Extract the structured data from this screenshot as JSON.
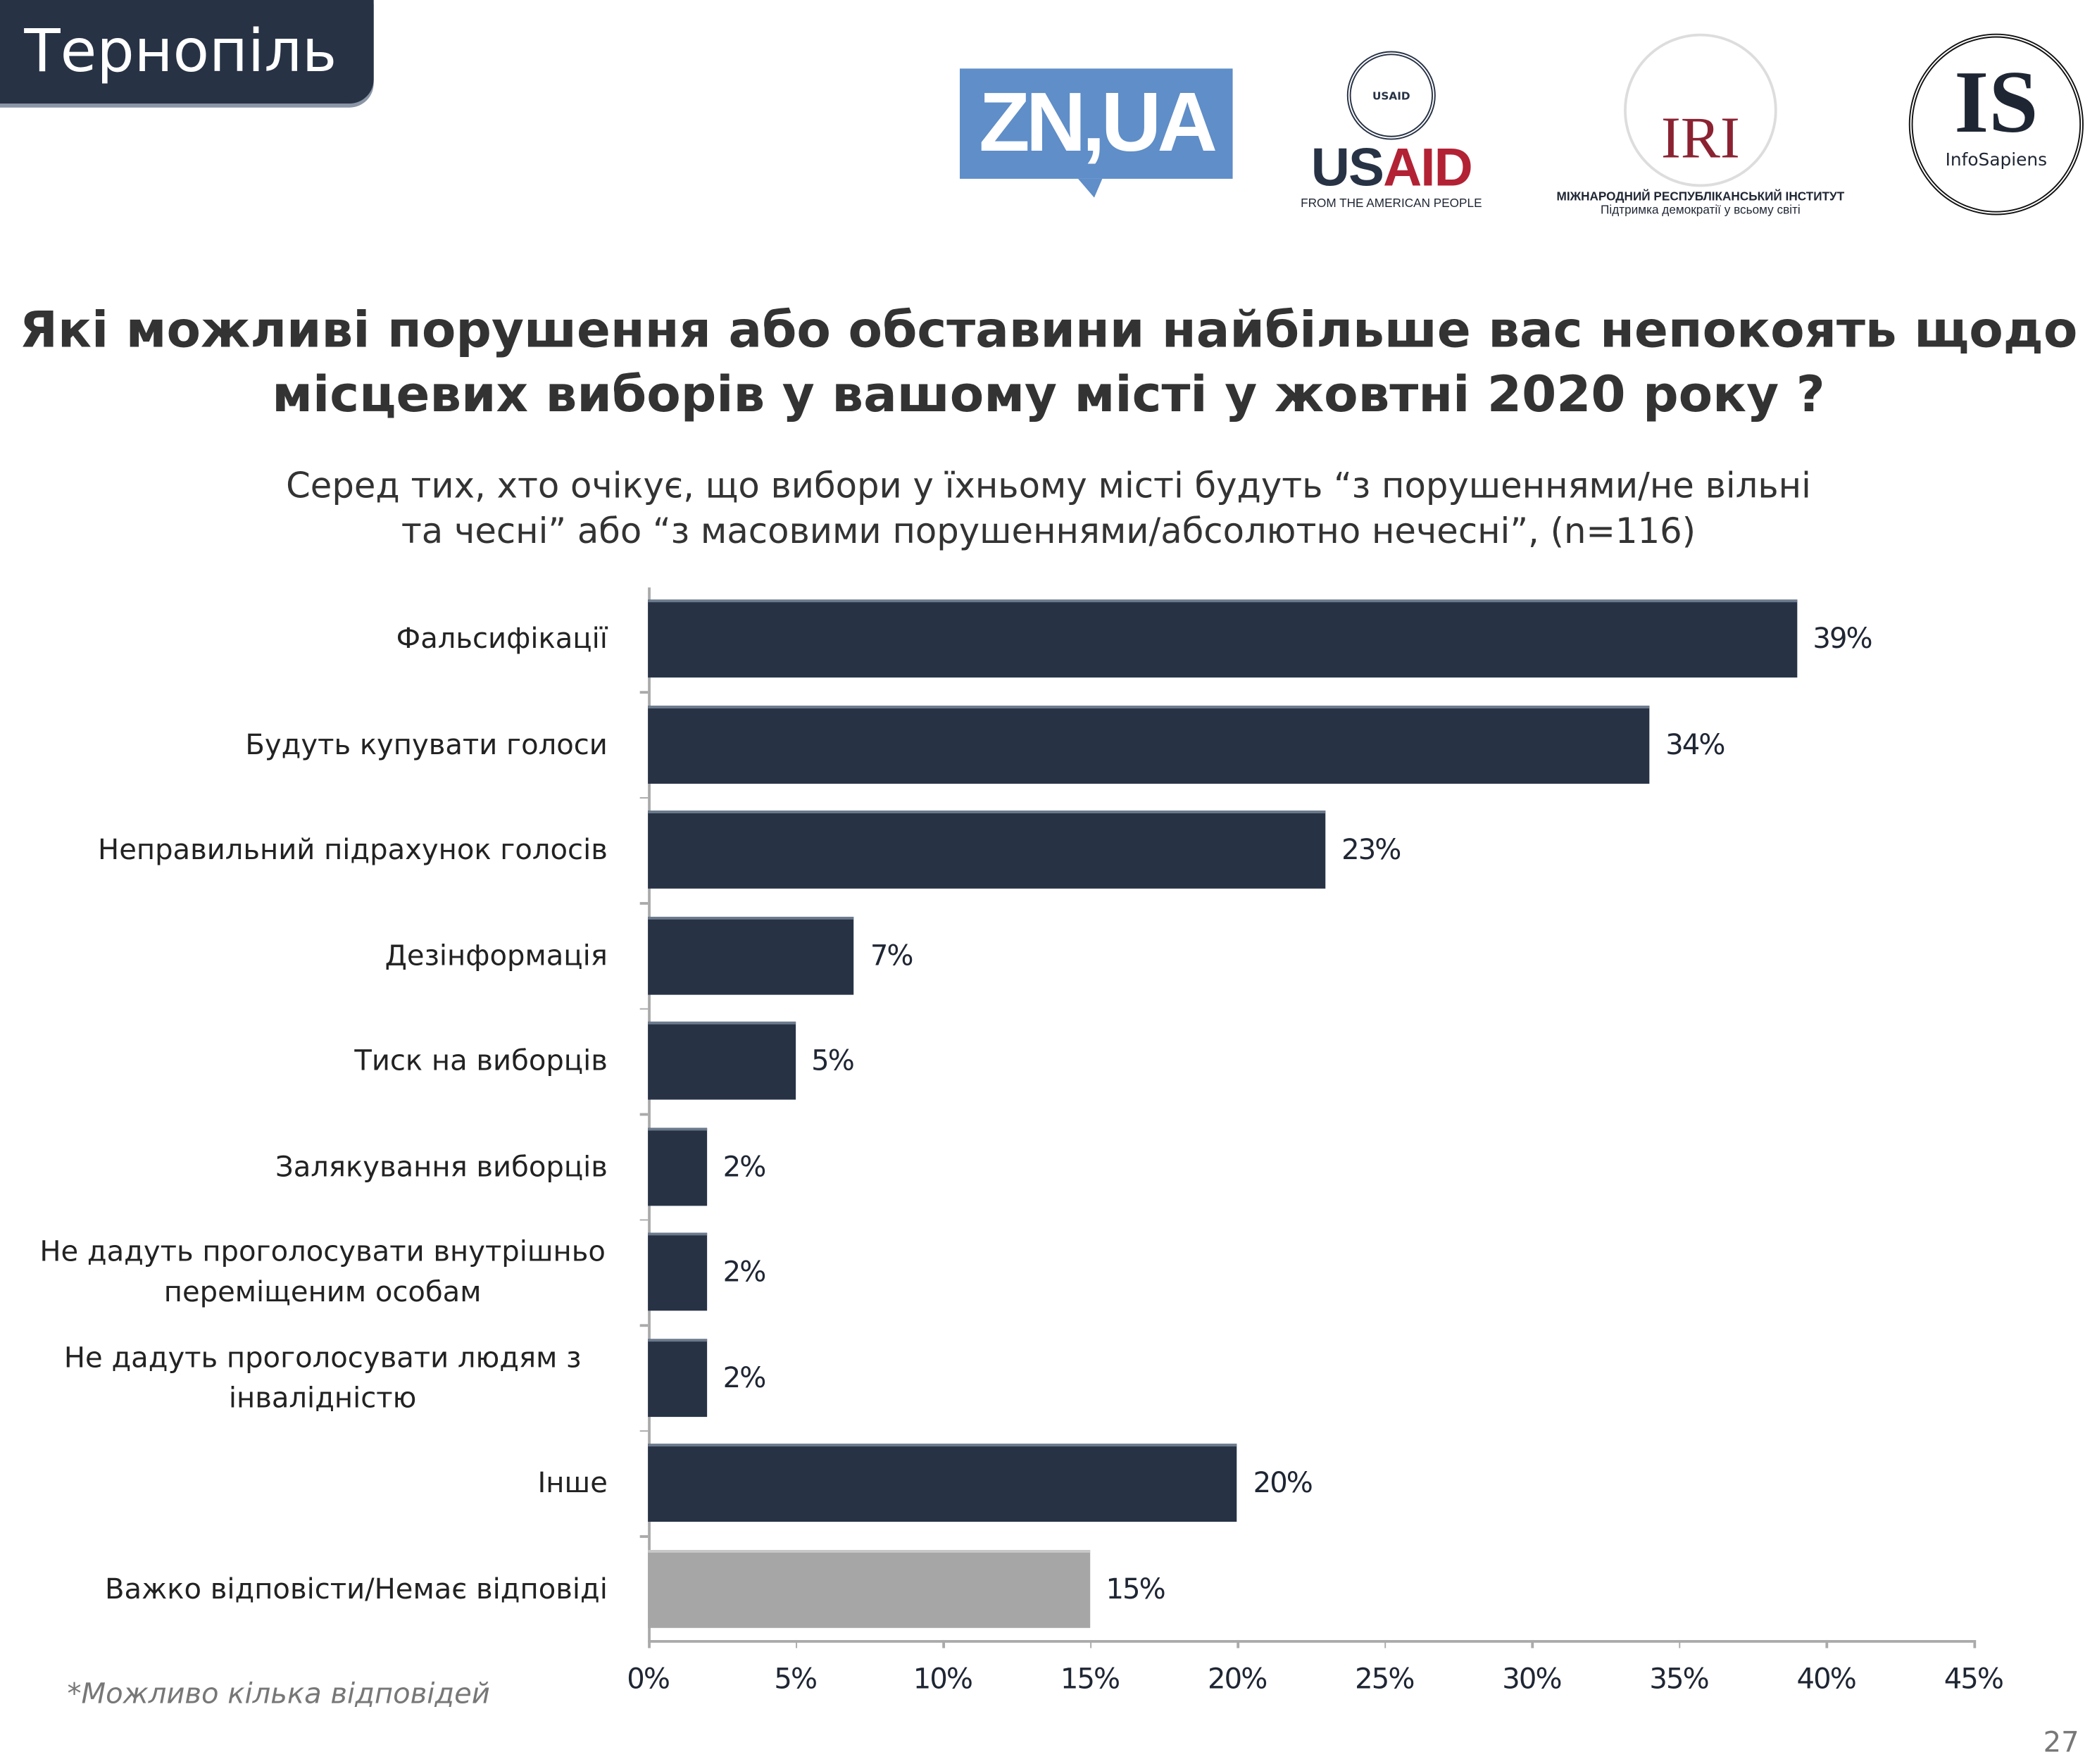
{
  "header": {
    "city": "Тернопіль"
  },
  "logos": {
    "zn": "ZN,UA",
    "usaid": {
      "word_us": "US",
      "word_aid": "AID",
      "seal": "USAID",
      "tagline": "FROM THE AMERICAN PEOPLE"
    },
    "iri": {
      "word": "IRI",
      "name": "МІЖНАРОДНИЙ РЕСПУБЛІКАНСЬКИЙ ІНСТИТУТ",
      "tagline": "Підтримка демократії у всьому світі"
    },
    "infosapiens": {
      "word": "IS",
      "name": "InfoSapiens"
    }
  },
  "title_lines": [
    "Які можливі порушення або обставини найбільше вас непокоять щодо",
    "місцевих виборів у вашому місті у жовтні 2020 року ?"
  ],
  "subtitle_lines": [
    "Серед тих, хто очікує, що вибори у їхньому місті будуть “з порушеннями/не вільні",
    "та чесні” або “з масовими порушеннями/абсолютно нечесні”, (n=116)"
  ],
  "footnote": "*Можливо кілька відповідей",
  "page_number": "27",
  "colors": {
    "bar": "#273245",
    "bar_neutral": "#a6a6a6"
  },
  "chart_data": {
    "type": "bar",
    "orientation": "horizontal",
    "categories": [
      "Фальсифікації",
      "Будуть купувати голоси",
      "Неправильний підрахунок голосів",
      "Дезінформація",
      "Тиск на виборців",
      "Залякування виборців",
      "Не дадуть проголосувати внутрішньо переміщеним особам",
      "Не дадуть проголосувати людям з інвалідністю",
      "Інше",
      "Важко відповісти/Немає відповіді"
    ],
    "values": [
      39,
      34,
      23,
      7,
      5,
      2,
      2,
      2,
      20,
      15
    ],
    "labels": [
      "39%",
      "34%",
      "23%",
      "7%",
      "5%",
      "2%",
      "2%",
      "2%",
      "20%",
      "15%"
    ],
    "xlim": [
      0,
      45
    ],
    "xticks": [
      "0%",
      "5%",
      "10%",
      "15%",
      "20%",
      "25%",
      "30%",
      "35%",
      "40%",
      "45%"
    ],
    "grid": false
  }
}
